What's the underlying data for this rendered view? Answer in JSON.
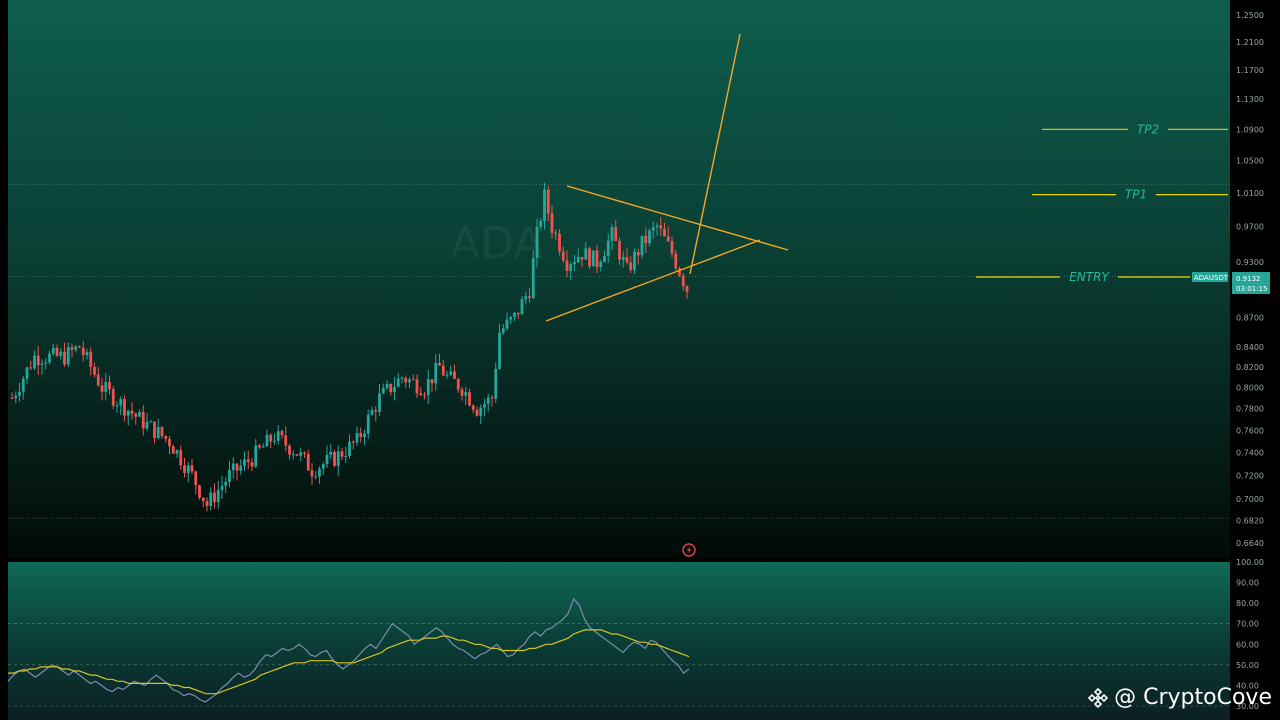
{
  "chart_data": [
    {
      "type": "candlestick",
      "symbol": "ADAUSDT",
      "watermark": "ADA",
      "last_price": "0.9132",
      "countdown": "03:01:15",
      "y_ticks": [
        "1.2500",
        "1.2100",
        "1.1700",
        "1.1300",
        "1.0900",
        "1.0500",
        "1.0100",
        "0.9700",
        "0.9300",
        "0.8700",
        "0.8400",
        "0.8200",
        "0.8000",
        "0.7800",
        "0.7600",
        "0.7400",
        "0.7200",
        "0.7000",
        "0.6820",
        "0.6640"
      ],
      "ylim": [
        0.664,
        1.25
      ],
      "y_scale": "log",
      "levels": [
        {
          "label": "TP2",
          "value": 1.09
        },
        {
          "label": "TP1",
          "value": 1.008
        },
        {
          "label": "ENTRY",
          "value": 0.9132
        }
      ],
      "horizontal_lines": [
        1.02,
        0.914,
        0.684
      ],
      "pattern": "symmetrical triangle with projected breakout",
      "colors": {
        "up": "#26a69a",
        "down": "#ef5350",
        "drawing": "#f5a623",
        "levels": "#e6d200",
        "tag": "#26a69a"
      }
    },
    {
      "type": "line",
      "y_ticks": [
        "100.00",
        "90.00",
        "80.00",
        "70.00",
        "60.00",
        "50.00",
        "40.00",
        "30.00"
      ],
      "ylim": [
        30,
        100
      ],
      "bands": [
        70,
        50,
        30
      ],
      "series": [
        {
          "values": [
            42,
            45,
            47,
            48,
            46,
            44,
            46,
            48,
            50,
            49,
            47,
            45,
            47,
            45,
            43,
            41,
            42,
            40,
            38,
            37,
            39,
            38,
            40,
            42,
            41,
            40,
            43,
            45,
            43,
            41,
            38,
            37,
            35,
            36,
            35,
            33,
            32,
            34,
            36,
            39,
            41,
            44,
            46,
            44,
            45,
            48,
            52,
            55,
            54,
            56,
            58,
            57,
            58,
            60,
            58,
            55,
            54,
            56,
            57,
            53,
            50,
            48,
            50,
            52,
            55,
            58,
            60,
            58,
            62,
            66,
            70,
            68,
            66,
            64,
            60,
            62,
            64,
            66,
            68,
            66,
            63,
            60,
            58,
            57,
            55,
            53,
            55,
            56,
            58,
            60,
            57,
            54,
            55,
            58,
            60,
            64,
            66,
            64,
            67,
            68,
            70,
            72,
            75,
            82,
            79,
            72,
            68,
            66,
            64,
            62,
            60,
            58,
            56,
            59,
            61,
            60,
            58,
            62,
            61,
            58,
            55,
            52,
            50,
            46,
            48
          ]
        },
        {
          "values": [
            46,
            46,
            47,
            47,
            48,
            48,
            49,
            49,
            49,
            49,
            48,
            48,
            47,
            47,
            46,
            45,
            45,
            44,
            43,
            43,
            42,
            42,
            41,
            41,
            41,
            41,
            41,
            41,
            41,
            41,
            40,
            40,
            39,
            39,
            38,
            37,
            36,
            36,
            36,
            37,
            38,
            39,
            40,
            41,
            42,
            43,
            45,
            46,
            47,
            48,
            49,
            50,
            51,
            51,
            51,
            52,
            52,
            52,
            52,
            52,
            51,
            51,
            51,
            51,
            52,
            53,
            54,
            55,
            56,
            58,
            59,
            60,
            61,
            62,
            62,
            62,
            63,
            63,
            63,
            64,
            64,
            63,
            62,
            62,
            61,
            60,
            60,
            59,
            58,
            58,
            57,
            57,
            57,
            57,
            57,
            58,
            58,
            59,
            60,
            60,
            61,
            62,
            63,
            65,
            66,
            67,
            67,
            67,
            67,
            66,
            65,
            65,
            64,
            63,
            62,
            61,
            61,
            60,
            60,
            59,
            58,
            57,
            56,
            55,
            54
          ]
        }
      ],
      "colors": {
        "series_1": "#7f8ab0",
        "series_2": "#d8c41f"
      }
    }
  ],
  "brand": {
    "text": "@ CryptoCove"
  },
  "icons": {
    "brand_logo": "binance-diamond-icon",
    "bolt": "lightning-bolt-icon"
  }
}
